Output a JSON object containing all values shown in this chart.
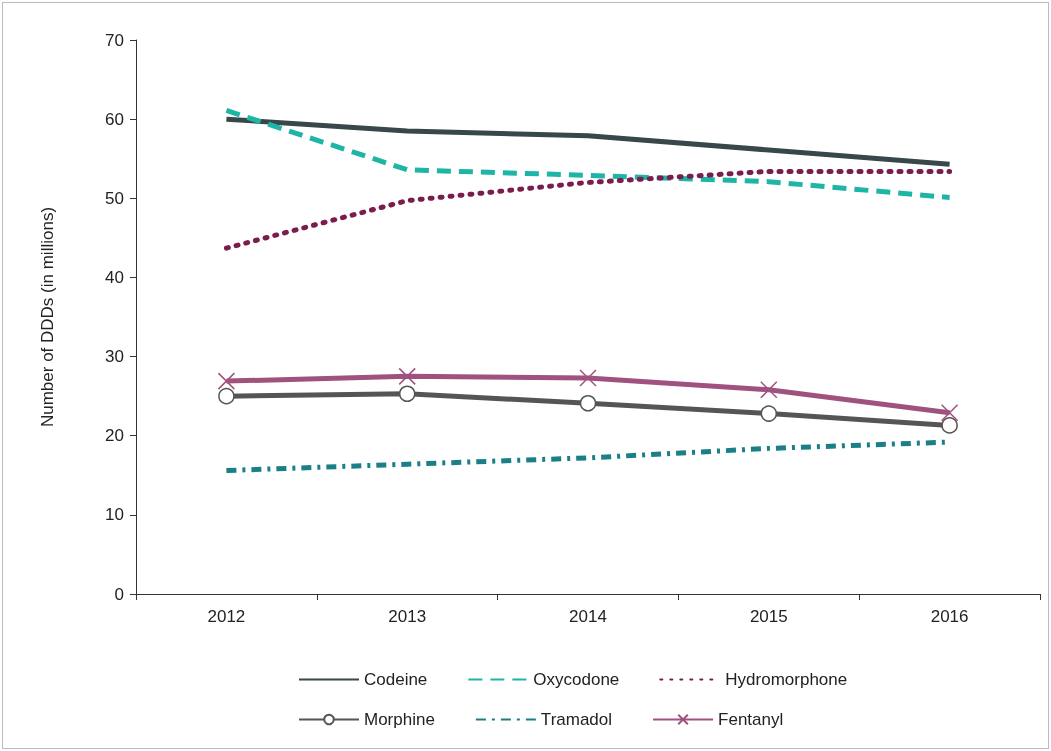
{
  "chart_data": {
    "type": "line",
    "ylabel": "Number of DDDs (in millions)",
    "categories": [
      "2012",
      "2013",
      "2014",
      "2015",
      "2016"
    ],
    "ylim": [
      0,
      70
    ],
    "yticks": [
      0,
      10,
      20,
      30,
      40,
      50,
      60,
      70
    ],
    "grid": false,
    "legend": "bottom",
    "series": [
      {
        "name": "Codeine",
        "color": "#37474a",
        "values": [
          60.0,
          58.5,
          57.9,
          56.1,
          54.3
        ],
        "marker": "none",
        "line_style": "solid"
      },
      {
        "name": "Oxycodone",
        "color": "#1fb5a6",
        "values": [
          61.1,
          53.6,
          52.9,
          52.1,
          50.1
        ],
        "marker": "none",
        "line_style": "dashed"
      },
      {
        "name": "Hydromorphone",
        "color": "#7a1c4e",
        "values": [
          43.7,
          49.7,
          52.0,
          53.4,
          53.4
        ],
        "marker": "none",
        "line_style": "dotted"
      },
      {
        "name": "Morphine",
        "color": "#555555",
        "values": [
          25.0,
          25.3,
          24.1,
          22.8,
          21.3
        ],
        "marker": "circle",
        "line_style": "solid"
      },
      {
        "name": "Tramadol",
        "color": "#1a7f86",
        "values": [
          15.6,
          16.4,
          17.2,
          18.4,
          19.2
        ],
        "marker": "none",
        "line_style": "dashdot"
      },
      {
        "name": "Fentanyl",
        "color": "#a0527f",
        "values": [
          26.9,
          27.5,
          27.3,
          25.8,
          22.9
        ],
        "marker": "cross",
        "line_style": "solid"
      }
    ]
  }
}
